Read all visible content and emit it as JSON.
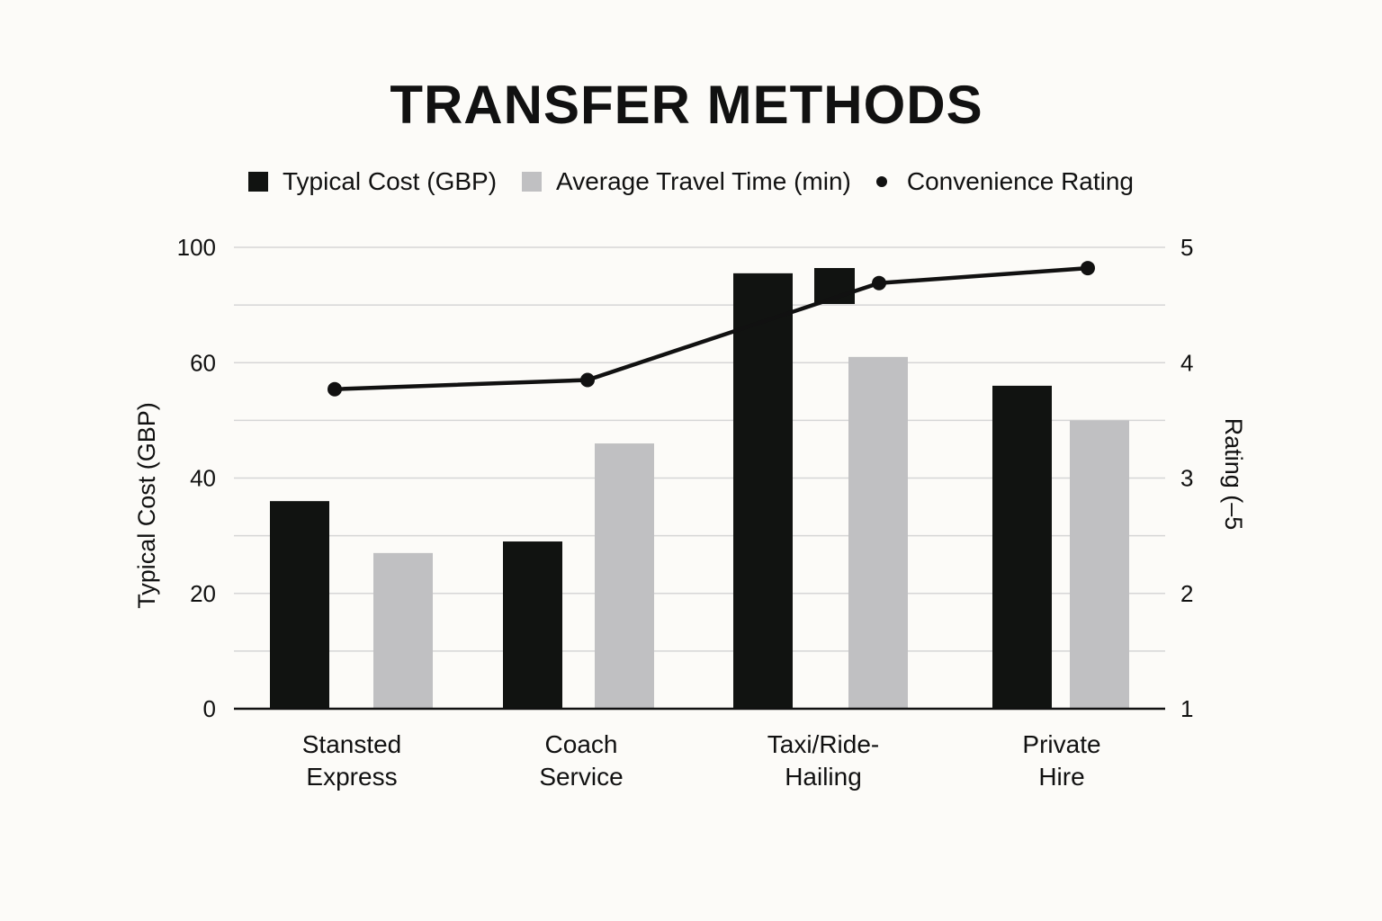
{
  "chart_data": {
    "type": "bar",
    "title": "TRANSFER METHODS",
    "categories": [
      [
        "Stansted",
        "Express"
      ],
      [
        "Coach",
        "Service"
      ],
      [
        "Taxi/Ride-",
        "Hailing"
      ],
      [
        "Private",
        "Hire"
      ]
    ],
    "series": [
      {
        "name": "Typical Cost (GBP)",
        "type": "bar",
        "axis": "left",
        "color": "#111311",
        "values": [
          36,
          29,
          91,
          56
        ]
      },
      {
        "name": "Average Travel Time (min)",
        "type": "bar",
        "axis": "left",
        "color": "#c0c0c2",
        "values": [
          27,
          46,
          62,
          50
        ]
      },
      {
        "name": "Convenience Rating",
        "type": "line",
        "axis": "right",
        "color": "#111111",
        "values": [
          3.77,
          3.85,
          4.69,
          4.82
        ]
      }
    ],
    "left_axis": {
      "label": "Typical Cost (GBP)",
      "ticks": [
        0,
        20,
        40,
        60,
        100
      ]
    },
    "right_axis": {
      "label": "Rating (–5",
      "ticks": [
        1,
        2,
        3,
        4,
        5
      ],
      "ylim": [
        1,
        5
      ]
    },
    "grid": true,
    "legend": "top"
  }
}
